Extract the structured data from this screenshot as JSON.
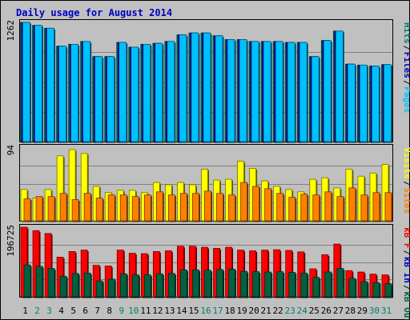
{
  "chart_data": {
    "type": "bar",
    "title": "Daily usage for August 2014",
    "categories": [
      "1",
      "2",
      "3",
      "4",
      "5",
      "6",
      "7",
      "8",
      "9",
      "10",
      "11",
      "12",
      "13",
      "14",
      "15",
      "16",
      "17",
      "18",
      "19",
      "20",
      "21",
      "22",
      "23",
      "24",
      "25",
      "26",
      "27",
      "28",
      "29",
      "30",
      "31"
    ],
    "weekend_days": [
      "2",
      "3",
      "9",
      "10",
      "16",
      "17",
      "23",
      "24",
      "30",
      "31"
    ],
    "panels": [
      {
        "id": "top",
        "max_label": "1262",
        "ymax": 1262,
        "legend": [
          {
            "text": "Hits",
            "color": "#00806b"
          },
          {
            "text": "Files",
            "color": "#0000c0"
          },
          {
            "text": "Pages",
            "color": "#00c0ff"
          }
        ],
        "series": [
          {
            "name": "Hits",
            "color": "#00806b",
            "values": [
              1262,
              1230,
              1200,
              1010,
              1030,
              1060,
              900,
              900,
              1050,
              1000,
              1030,
              1040,
              1060,
              1130,
              1150,
              1150,
              1120,
              1080,
              1080,
              1060,
              1060,
              1060,
              1050,
              1050,
              900,
              1070,
              1170,
              820,
              810,
              800,
              815
            ]
          },
          {
            "name": "Files",
            "color": "#0000c0",
            "values": [
              1262,
              1230,
              1200,
              1010,
              1030,
              1060,
              900,
              900,
              1050,
              1000,
              1030,
              1040,
              1060,
              1130,
              1150,
              1150,
              1120,
              1080,
              1080,
              1060,
              1060,
              1060,
              1050,
              1050,
              900,
              1070,
              1170,
              820,
              810,
              800,
              815
            ]
          },
          {
            "name": "Pages",
            "color": "#00c0ff",
            "values": [
              1262,
              1230,
              1200,
              1010,
              1030,
              1060,
              900,
              900,
              1050,
              1000,
              1030,
              1040,
              1060,
              1130,
              1150,
              1150,
              1120,
              1080,
              1080,
              1060,
              1060,
              1060,
              1050,
              1050,
              900,
              1070,
              1170,
              820,
              810,
              800,
              815
            ]
          }
        ]
      },
      {
        "id": "middle",
        "max_label": "94",
        "ymax": 94,
        "legend": [
          {
            "text": "Visits",
            "color": "#ffff00"
          },
          {
            "text": "Sites",
            "color": "#ff8000"
          }
        ],
        "series": [
          {
            "name": "Visits",
            "color": "#ffff00",
            "values": [
              40,
              29,
              40,
              83,
              91,
              86,
              44,
              36,
              39,
              39,
              36,
              49,
              46,
              49,
              46,
              66,
              52,
              53,
              76,
              67,
              51,
              44,
              40,
              37,
              53,
              55,
              42,
              66,
              57,
              61,
              72
            ]
          },
          {
            "name": "Sites",
            "color": "#ff8000",
            "values": [
              28,
              31,
              31,
              35,
              27,
              35,
              29,
              33,
              33,
              31,
              33,
              37,
              33,
              35,
              35,
              38,
              35,
              33,
              49,
              44,
              41,
              35,
              30,
              34,
              33,
              37,
              31,
              42,
              33,
              36,
              36
            ]
          }
        ]
      },
      {
        "id": "bottom",
        "max_label": "196725",
        "ymax": 196725,
        "legend": [
          {
            "text": "kB F",
            "color": "#ff0000"
          },
          {
            "text": "kB In",
            "color": "#0000c0"
          },
          {
            "text": "kB Out",
            "color": "#006040"
          }
        ],
        "series": [
          {
            "name": "kB F",
            "color": "#ff0000",
            "values": [
              196725,
              187000,
              179000,
              112000,
              128000,
              132000,
              89000,
              87000,
              132000,
              123000,
              122000,
              128000,
              130000,
              143000,
              143000,
              140000,
              137000,
              140000,
              132000,
              130000,
              132000,
              133000,
              131000,
              127000,
              79000,
              119000,
              149000,
              74000,
              70000,
              64000,
              62000
            ]
          },
          {
            "name": "kB Out",
            "color": "#006040",
            "values": [
              90000,
              86000,
              80000,
              58000,
              66000,
              67000,
              45000,
              50000,
              65000,
              62000,
              62000,
              65000,
              66000,
              76000,
              76000,
              75000,
              77000,
              78000,
              72000,
              71000,
              70000,
              71000,
              69000,
              67000,
              55000,
              70000,
              80000,
              52000,
              43000,
              40000,
              37000
            ]
          }
        ]
      }
    ]
  }
}
